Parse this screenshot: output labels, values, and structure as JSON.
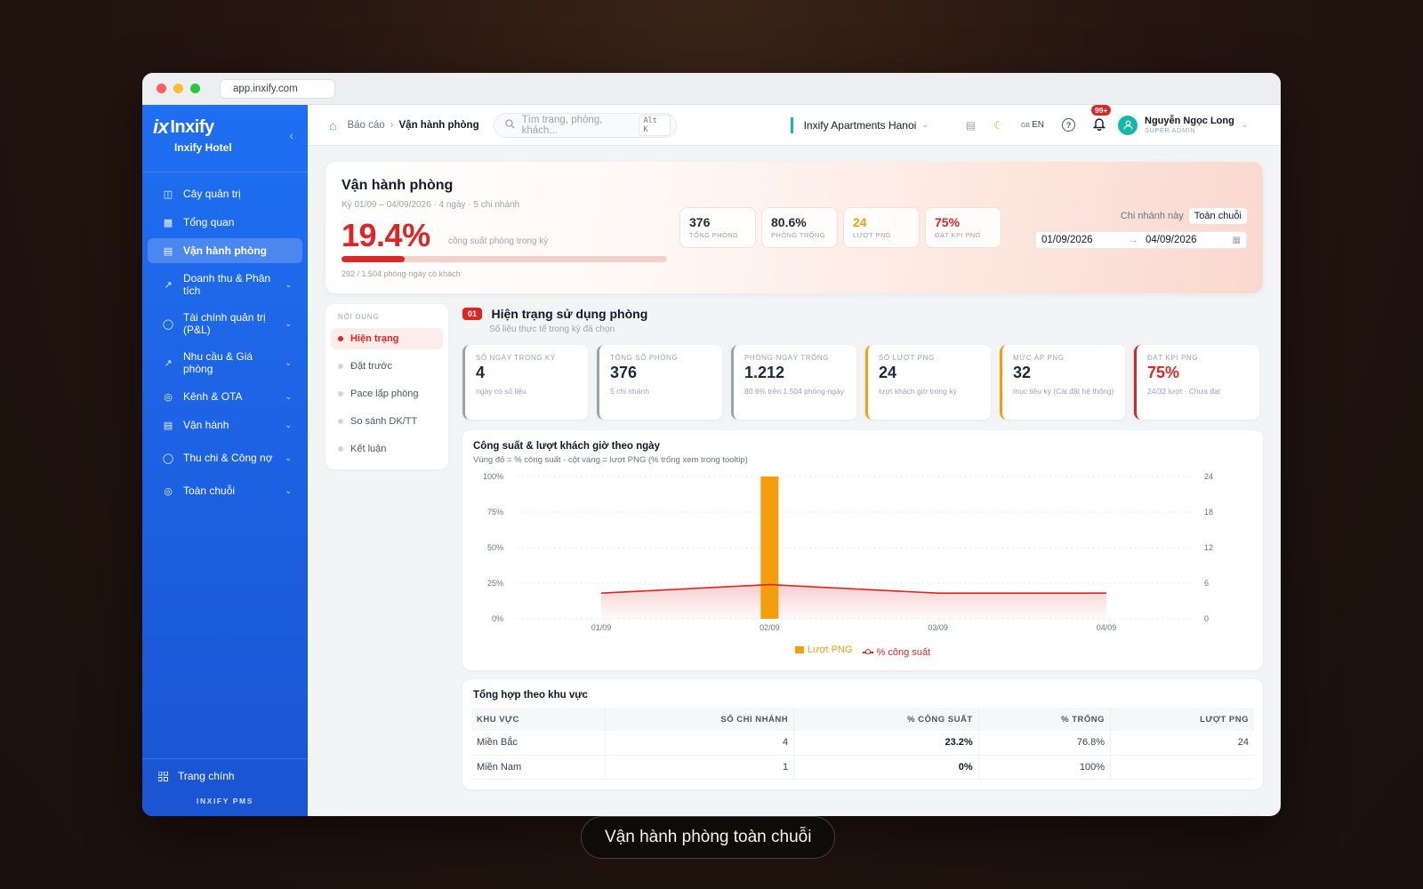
{
  "browser": {
    "url": "app.inxify.com"
  },
  "brand": {
    "logo": "Inxify",
    "logo_mark": "ix",
    "subtitle": "Inxify Hotel",
    "collapse_icon": "chevron-left-icon"
  },
  "sidebar": {
    "items": [
      {
        "label": "Cây quản trị",
        "icon": "tree-icon",
        "active": false,
        "expandable": false
      },
      {
        "label": "Tổng quan",
        "icon": "bar-chart-icon",
        "active": false,
        "expandable": false
      },
      {
        "label": "Vận hành phòng",
        "icon": "line-chart-icon",
        "active": true,
        "expandable": false
      },
      {
        "label": "Doanh thu & Phân tích",
        "icon": "trend-icon",
        "active": false,
        "expandable": true
      },
      {
        "label": "Tài chính quản trị (P&L)",
        "icon": "coin-icon",
        "active": false,
        "expandable": true
      },
      {
        "label": "Nhu cầu & Giá phòng",
        "icon": "trend-up-icon",
        "active": false,
        "expandable": true
      },
      {
        "label": "Kênh & OTA",
        "icon": "globe-icon",
        "active": false,
        "expandable": true
      },
      {
        "label": "Vận hành",
        "icon": "clipboard-icon",
        "active": false,
        "expandable": true
      },
      {
        "label": "Thu chi & Công nợ",
        "icon": "coin-icon",
        "active": false,
        "expandable": true
      },
      {
        "label": "Toàn chuỗi",
        "icon": "globe-icon",
        "active": false,
        "expandable": true
      }
    ],
    "footer_item": "Trang chính",
    "footer_brand": "INXIFY PMS"
  },
  "topbar": {
    "breadcrumb": [
      "Báo cáo",
      "Vận hành phòng"
    ],
    "search_placeholder": "Tìm trang, phòng, khách...",
    "search_shortcut": "Alt K",
    "property": "Inxify Apartments Hanoi",
    "lang_code": "GB",
    "lang": "EN",
    "notifications": "99+",
    "user_name": "Nguyễn Ngọc Long",
    "user_role": "SUPER ADMIN"
  },
  "hero": {
    "title": "Vận hành phòng",
    "subtitle": "Kỳ 01/09 – 04/09/2026 · 4 ngày · 5 chi nhánh",
    "occupancy": "19.4%",
    "occupancy_fraction": 0.194,
    "occupancy_caption": "công suất phòng trong kỳ",
    "progress_note": "292 / 1.504 phòng·ngày có khách",
    "kpis": [
      {
        "value": "376",
        "label": "TỔNG PHÒNG",
        "tone": "default"
      },
      {
        "value": "80.6%",
        "label": "PHÒNG TRỐNG",
        "tone": "default"
      },
      {
        "value": "24",
        "label": "LƯỢT PNG",
        "tone": "orange"
      },
      {
        "value": "75%",
        "label": "ĐẠT KPI PNG",
        "tone": "red"
      }
    ],
    "scope_options": [
      "Chi nhánh này",
      "Toàn chuỗi"
    ],
    "scope_selected": "Toàn chuỗi",
    "date_from": "01/09/2026",
    "date_to": "04/09/2026"
  },
  "toc": {
    "heading": "NỘI DUNG",
    "items": [
      "Hiện trạng",
      "Đặt trước",
      "Pace lấp phòng",
      "So sánh DK/TT",
      "Kết luận"
    ],
    "active": "Hiện trạng"
  },
  "section": {
    "number": "01",
    "title": "Hiện trạng sử dụng phòng",
    "subtitle": "Số liệu thực tế trong kỳ đã chọn"
  },
  "stats": [
    {
      "label": "SỐ NGÀY TRONG KỲ",
      "value": "4",
      "note": "ngày có số liệu",
      "tone": "default"
    },
    {
      "label": "TỔNG SỐ PHÒNG",
      "value": "376",
      "note": "5 chi nhánh",
      "tone": "default"
    },
    {
      "label": "PHÒNG·NGÀY TRỐNG",
      "value": "1.212",
      "note": "80.6% trên 1.504 phòng·ngày",
      "tone": "default"
    },
    {
      "label": "SỐ LƯỢT PNG",
      "value": "24",
      "note": "lượt khách giờ trong kỳ",
      "tone": "orange"
    },
    {
      "label": "MỨC ÁP PNG",
      "value": "32",
      "note": "mục tiêu kỳ (Cài đặt hệ thống)",
      "tone": "orange"
    },
    {
      "label": "ĐẠT KPI PNG",
      "value": "75%",
      "note": "24/32 lượt · Chưa đạt",
      "tone": "red"
    }
  ],
  "chart": {
    "title": "Công suất & lượt khách giờ theo ngày",
    "subtitle": "Vùng đỏ = % công suất · cột vàng = lượt PNG (% trống xem trong tooltip)",
    "legend_bar": "Lượt PNG",
    "legend_line": "% công suất"
  },
  "chart_data": {
    "type": "bar",
    "categories": [
      "01/09",
      "02/09",
      "03/09",
      "04/09"
    ],
    "series": [
      {
        "name": "Lượt PNG",
        "type": "bar",
        "axis": "right",
        "values": [
          0,
          24,
          0,
          0
        ]
      },
      {
        "name": "% công suất",
        "type": "area",
        "axis": "left",
        "values": [
          18,
          24,
          18,
          18
        ]
      }
    ],
    "y_left_ticks": [
      "100%",
      "75%",
      "50%",
      "25%",
      "0%"
    ],
    "y_left_range": [
      0,
      100
    ],
    "y_right_ticks": [
      "24",
      "18",
      "12",
      "6",
      "0"
    ],
    "y_right_range": [
      0,
      24
    ],
    "colors": {
      "bar": "#f59e0b",
      "line": "#dc2626"
    },
    "grid": true,
    "legend_position": "bottom"
  },
  "region_table": {
    "title": "Tổng hợp theo khu vực",
    "columns": [
      "KHU VỰC",
      "SỐ CHI NHÁNH",
      "% CÔNG SUẤT",
      "% TRỐNG",
      "LƯỢT PNG"
    ],
    "rows": [
      [
        "Miền Bắc",
        "4",
        "23.2%",
        "76.8%",
        "24"
      ],
      [
        "Miền Nam",
        "1",
        "0%",
        "100%",
        ""
      ]
    ]
  },
  "assistant": {
    "icon": "robot-icon"
  },
  "caption": "Vận hành phòng toàn chuỗi"
}
